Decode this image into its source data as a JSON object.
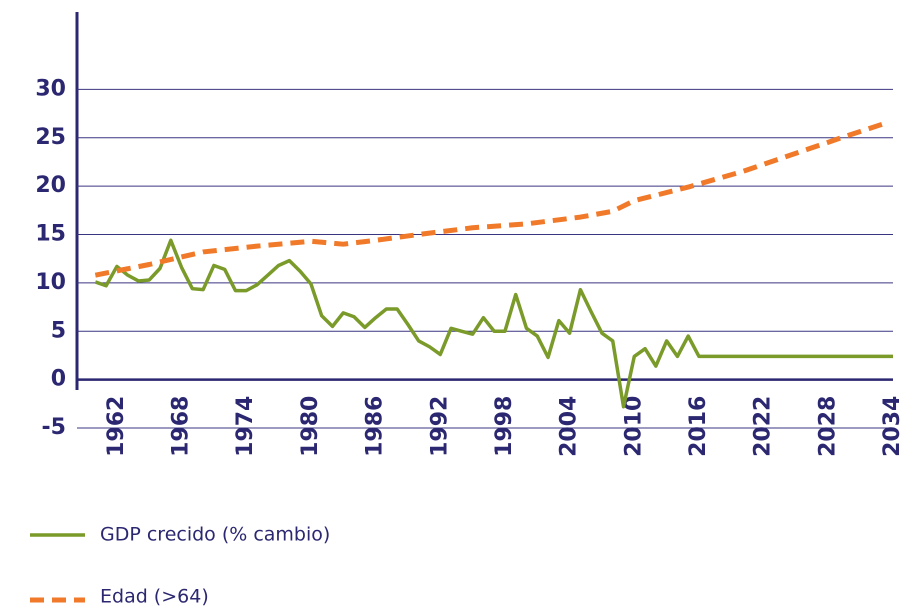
{
  "chart_data": {
    "type": "line",
    "xlim": [
      1958.3,
      2034
    ],
    "xticks": [
      1962,
      1968,
      1974,
      1980,
      1986,
      1992,
      1998,
      2004,
      2010,
      2016,
      2022,
      2028,
      2034
    ],
    "ylim": [
      -5,
      38
    ],
    "yticks": [
      -5,
      0,
      5,
      10,
      15,
      20,
      25,
      30
    ],
    "grid": true,
    "series": [
      {
        "name": "GDP crecido (% cambio)",
        "color": "#7a9a2a",
        "dash": false,
        "x": [
          1960,
          1961,
          1962,
          1963,
          1964,
          1965,
          1966,
          1967,
          1968,
          1969,
          1970,
          1971,
          1972,
          1973,
          1974,
          1975,
          1976,
          1977,
          1978,
          1979,
          1980,
          1981,
          1982,
          1983,
          1984,
          1985,
          1986,
          1987,
          1988,
          1989,
          1990,
          1991,
          1992,
          1993,
          1994,
          1995,
          1996,
          1997,
          1998,
          1999,
          2000,
          2001,
          2002,
          2003,
          2004,
          2005,
          2006,
          2007,
          2008,
          2009,
          2010,
          2011,
          2012,
          2013,
          2014,
          2015,
          2016,
          2034
        ],
        "values": [
          10.1,
          9.7,
          11.7,
          10.8,
          10.2,
          10.3,
          11.5,
          14.4,
          11.6,
          9.4,
          9.3,
          11.8,
          11.4,
          9.2,
          9.2,
          9.8,
          10.8,
          11.8,
          12.3,
          11.2,
          9.9,
          6.6,
          5.5,
          6.9,
          6.5,
          5.4,
          6.4,
          7.3,
          7.3,
          5.7,
          4.0,
          3.4,
          2.6,
          5.3,
          5.0,
          4.7,
          6.4,
          5.0,
          5.0,
          8.8,
          5.3,
          4.5,
          2.3,
          6.1,
          4.8,
          9.3,
          7.0,
          4.8,
          4.0,
          -2.8,
          2.4,
          3.2,
          1.4,
          4.0,
          2.4,
          4.5,
          2.4,
          2.4
        ]
      },
      {
        "name": "Edad (>64)",
        "color": "#f07a2a",
        "dash": true,
        "x": [
          1960,
          1965,
          1970,
          1975,
          1980,
          1983,
          1986,
          1990,
          1995,
          2000,
          2005,
          2008,
          2010,
          2015,
          2020,
          2025,
          2030,
          2033
        ],
        "values": [
          10.8,
          11.9,
          13.2,
          13.8,
          14.3,
          14.0,
          14.4,
          15.0,
          15.7,
          16.1,
          16.8,
          17.4,
          18.5,
          19.9,
          21.5,
          23.4,
          25.3,
          26.4
        ]
      }
    ]
  }
}
